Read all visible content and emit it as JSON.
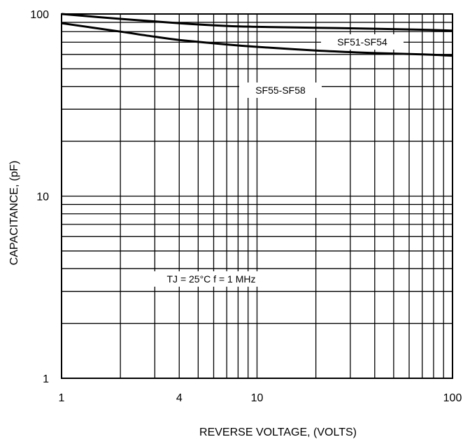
{
  "chart_data": {
    "type": "line",
    "title": "",
    "xlabel": "REVERSE VOLTAGE, (VOLTS)",
    "ylabel": "CAPACITANCE, (pF)",
    "x_scale": "log",
    "y_scale": "log",
    "xlim": [
      1,
      100
    ],
    "ylim": [
      1,
      100
    ],
    "x_tick_labels": [
      {
        "value": 1,
        "label": "1"
      },
      {
        "value": 4,
        "label": "4"
      },
      {
        "value": 10,
        "label": "10"
      },
      {
        "value": 100,
        "label": "100"
      }
    ],
    "y_tick_labels": [
      {
        "value": 1,
        "label": "1"
      },
      {
        "value": 10,
        "label": "10"
      },
      {
        "value": 100,
        "label": "100"
      }
    ],
    "x_gridlines": [
      1,
      2,
      3,
      4,
      5,
      6,
      7,
      8,
      9,
      10,
      20,
      30,
      40,
      50,
      60,
      70,
      80,
      90,
      100
    ],
    "y_gridlines": [
      1,
      2,
      3,
      4,
      5,
      6,
      7,
      8,
      9,
      10,
      20,
      30,
      40,
      50,
      60,
      70,
      80,
      90,
      100
    ],
    "grid": true,
    "series": [
      {
        "name": "SF51-SF54",
        "x": [
          1,
          2,
          4,
          7,
          10,
          20,
          40,
          70,
          100
        ],
        "y": [
          100,
          94,
          89,
          86,
          85,
          84,
          83,
          82,
          81
        ]
      },
      {
        "name": "SF55-SF58",
        "x": [
          1,
          2,
          3,
          4,
          7,
          10,
          20,
          40,
          70,
          100
        ],
        "y": [
          89,
          80,
          75,
          72,
          68,
          66,
          63,
          61,
          60,
          59
        ]
      }
    ],
    "annotations": [
      "TJ = 25°C  f = 1 MHz"
    ],
    "line_color": "#000000"
  }
}
